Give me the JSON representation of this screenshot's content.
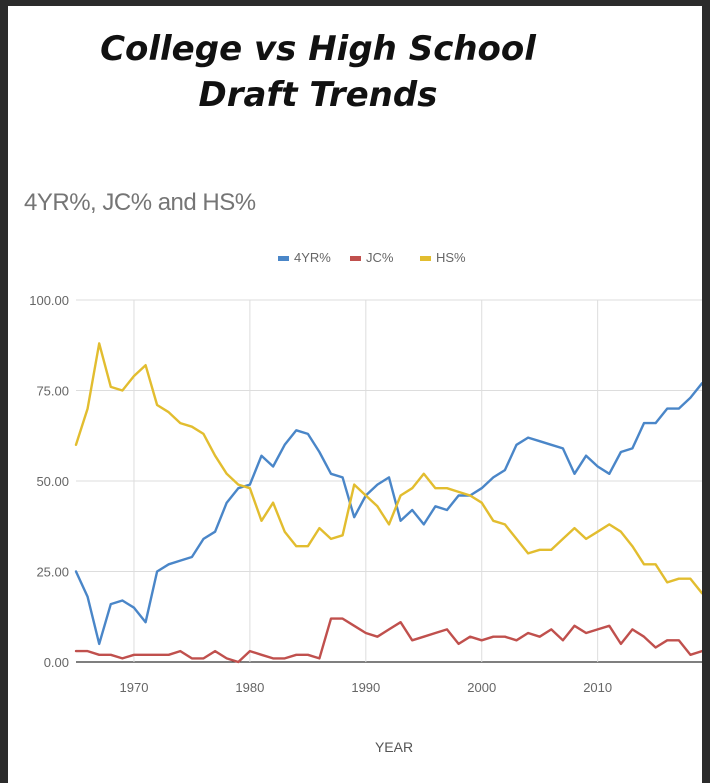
{
  "headline": {
    "line1": "College vs High School",
    "line2": "Draft Trends"
  },
  "chart_data": {
    "type": "line",
    "title": "4YR%, JC% and HS%",
    "xlabel": "YEAR",
    "ylabel": "",
    "xlim": [
      1965,
      2019
    ],
    "ylim": [
      0,
      100
    ],
    "x_ticks": [
      "1970",
      "1980",
      "1990",
      "2000",
      "2010"
    ],
    "y_ticks": [
      "0.00",
      "25.00",
      "50.00",
      "75.00",
      "100.00"
    ],
    "grid": true,
    "legend_position": "top-center",
    "x": [
      1965,
      1966,
      1967,
      1968,
      1969,
      1970,
      1971,
      1972,
      1973,
      1974,
      1975,
      1976,
      1977,
      1978,
      1979,
      1980,
      1981,
      1982,
      1983,
      1984,
      1985,
      1986,
      1987,
      1988,
      1989,
      1990,
      1991,
      1992,
      1993,
      1994,
      1995,
      1996,
      1997,
      1998,
      1999,
      2000,
      2001,
      2002,
      2003,
      2004,
      2005,
      2006,
      2007,
      2008,
      2009,
      2010,
      2011,
      2012,
      2013,
      2014,
      2015,
      2016,
      2017,
      2018,
      2019
    ],
    "series": [
      {
        "name": "4YR%",
        "color": "#4a86c8",
        "values": [
          25,
          18,
          5,
          16,
          17,
          15,
          11,
          25,
          27,
          28,
          29,
          34,
          36,
          44,
          48,
          49,
          57,
          54,
          60,
          64,
          63,
          58,
          52,
          51,
          40,
          46,
          49,
          51,
          39,
          42,
          38,
          43,
          42,
          46,
          46,
          48,
          51,
          53,
          60,
          62,
          61,
          60,
          59,
          52,
          57,
          54,
          52,
          58,
          59,
          66,
          66,
          70,
          70,
          73,
          77
        ]
      },
      {
        "name": "JC%",
        "color": "#c0504d",
        "values": [
          3,
          3,
          2,
          2,
          1,
          2,
          2,
          2,
          2,
          3,
          1,
          1,
          3,
          1,
          0,
          3,
          2,
          1,
          1,
          2,
          2,
          1,
          12,
          12,
          10,
          8,
          7,
          9,
          11,
          6,
          7,
          8,
          9,
          5,
          7,
          6,
          7,
          7,
          6,
          8,
          7,
          9,
          6,
          10,
          8,
          9,
          10,
          5,
          9,
          7,
          4,
          6,
          6,
          2,
          3
        ]
      },
      {
        "name": "HS%",
        "color": "#e2bd2f",
        "values": [
          60,
          70,
          88,
          76,
          75,
          79,
          82,
          71,
          69,
          66,
          65,
          63,
          57,
          52,
          49,
          48,
          39,
          44,
          36,
          32,
          32,
          37,
          34,
          35,
          49,
          46,
          43,
          38,
          46,
          48,
          52,
          48,
          48,
          47,
          46,
          44,
          39,
          38,
          34,
          30,
          31,
          31,
          34,
          37,
          34,
          36,
          38,
          36,
          32,
          27,
          27,
          22,
          23,
          23,
          19
        ]
      }
    ]
  }
}
